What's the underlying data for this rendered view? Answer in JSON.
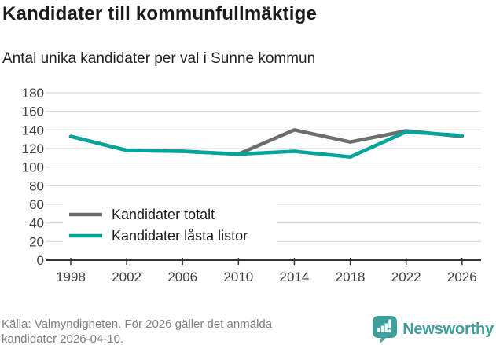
{
  "header": {
    "title": "Kandidater till kommunfullmäktige",
    "subtitle": "Antal unika kandidater per val i Sunne kommun"
  },
  "chart_data": {
    "type": "line",
    "x": [
      1998,
      2002,
      2006,
      2010,
      2014,
      2018,
      2022,
      2026
    ],
    "series": [
      {
        "name": "Kandidater totalt",
        "color": "#6d6d6d",
        "values": [
          133,
          118,
          117,
          114,
          140,
          127,
          139,
          133
        ]
      },
      {
        "name": "Kandidater låsta listor",
        "color": "#00a49a",
        "values": [
          133,
          118,
          117,
          114,
          117,
          111,
          138,
          134
        ]
      }
    ],
    "ylim": [
      0,
      180
    ],
    "ytick_step": 20,
    "yticks": [
      0,
      20,
      40,
      60,
      80,
      100,
      120,
      140,
      160,
      180
    ],
    "grid": "horizontal",
    "legend_position": "inside-bottom-left"
  },
  "footer": {
    "source": "Källa: Valmyndigheten. För 2026 gäller det anmälda kandidater 2026-04-10.",
    "brand": "Newsworthy"
  },
  "icons": {
    "brand_logo": "newsworthy-speech-bubble-bar-chart"
  },
  "colors": {
    "accent_teal": "#00a49a",
    "line_gray": "#6d6d6d",
    "brand_teal": "#3f9f9c",
    "grid": "#dcdcdc",
    "axis": "#333333",
    "footer_text": "#7f7f7f"
  }
}
